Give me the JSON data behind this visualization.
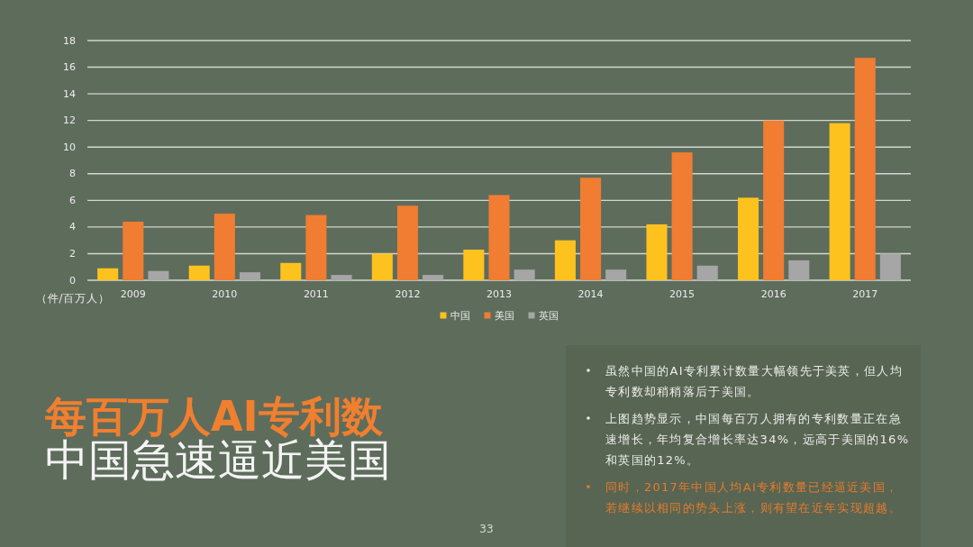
{
  "chart_data": {
    "type": "bar",
    "title": "每百万人AI专利数",
    "subtitle": "中国急速逼近美国",
    "ylabel": "（件/百万人）",
    "categories": [
      "2009",
      "2010",
      "2011",
      "2012",
      "2013",
      "2014",
      "2015",
      "2016",
      "2017"
    ],
    "series": [
      {
        "name": "中国",
        "color": "#fdc21e",
        "values": [
          0.9,
          1.1,
          1.3,
          2.0,
          2.3,
          3.0,
          4.2,
          6.2,
          11.8
        ]
      },
      {
        "name": "美国",
        "color": "#f07d32",
        "values": [
          4.4,
          5.0,
          4.9,
          5.6,
          6.4,
          7.7,
          9.6,
          12.0,
          16.7
        ]
      },
      {
        "name": "英国",
        "color": "#a6a6a6",
        "values": [
          0.7,
          0.6,
          0.4,
          0.4,
          0.8,
          0.8,
          1.1,
          1.5,
          2.0
        ]
      }
    ],
    "ylim": [
      0,
      18
    ],
    "yticks": [
      0,
      2,
      4,
      6,
      8,
      10,
      12,
      14,
      16,
      18
    ],
    "grid": "y",
    "legend": "bottom",
    "annotations": [
      "虽然中国的AI专利累计数量大幅领先于美英，但人均专利数却稍稍落后于美国。",
      "上图趋势显示，中国每百万人拥有的专利数量正在急速增长，年均复合增长率达34%，远高于美国的16%和英国的12%。",
      "同时，2017年中国人均AI专利数量已经逼近美国，若继续以相同的势头上涨，则有望在近年实现超越。",
      "33"
    ]
  }
}
